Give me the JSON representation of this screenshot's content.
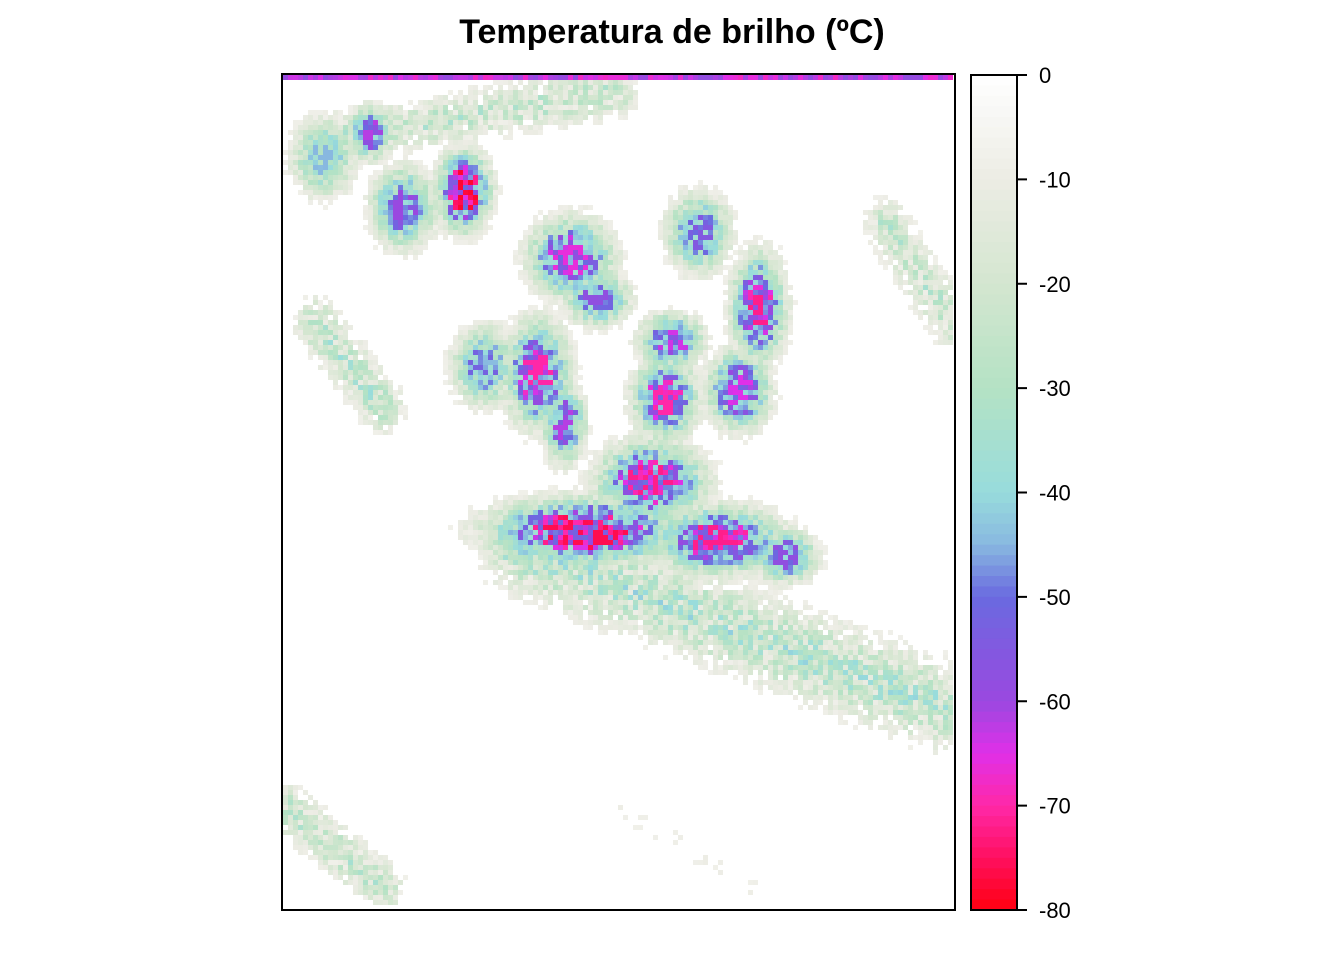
{
  "chart_data": {
    "type": "heatmap",
    "title": "Temperatura de brilho (ºC)",
    "xlabel": "",
    "ylabel": "",
    "colorbar": {
      "min": -80,
      "max": 0,
      "ticks": [
        0,
        -10,
        -20,
        -30,
        -40,
        -50,
        -60,
        -70,
        -80
      ],
      "tick_labels": [
        "0",
        "-10",
        "-20",
        "-30",
        "-40",
        "-50",
        "-60",
        "-70",
        "-80"
      ],
      "palette": [
        {
          "value": 0,
          "color": "#ffffff"
        },
        {
          "value": -10,
          "color": "#ecece4"
        },
        {
          "value": -20,
          "color": "#d4e6d0"
        },
        {
          "value": -30,
          "color": "#b4e2c4"
        },
        {
          "value": -40,
          "color": "#98dcdc"
        },
        {
          "value": -45,
          "color": "#88b8e0"
        },
        {
          "value": -50,
          "color": "#6a6ae0"
        },
        {
          "value": -60,
          "color": "#9a48e0"
        },
        {
          "value": -65,
          "color": "#e030e8"
        },
        {
          "value": -70,
          "color": "#ff28a8"
        },
        {
          "value": -75,
          "color": "#ff1060"
        },
        {
          "value": -80,
          "color": "#ff0010"
        }
      ]
    },
    "clusters": [
      {
        "x": 0.27,
        "y": 0.14,
        "sx": 0.025,
        "sy": 0.03,
        "value": -78
      },
      {
        "x": 0.18,
        "y": 0.16,
        "sx": 0.03,
        "sy": 0.03,
        "value": -60
      },
      {
        "x": 0.06,
        "y": 0.1,
        "sx": 0.03,
        "sy": 0.03,
        "value": -45
      },
      {
        "x": 0.13,
        "y": 0.07,
        "sx": 0.02,
        "sy": 0.02,
        "value": -62
      },
      {
        "x": 0.43,
        "y": 0.22,
        "sx": 0.04,
        "sy": 0.03,
        "value": -66
      },
      {
        "x": 0.62,
        "y": 0.19,
        "sx": 0.03,
        "sy": 0.03,
        "value": -55
      },
      {
        "x": 0.71,
        "y": 0.28,
        "sx": 0.025,
        "sy": 0.04,
        "value": -72
      },
      {
        "x": 0.58,
        "y": 0.32,
        "sx": 0.03,
        "sy": 0.02,
        "value": -64
      },
      {
        "x": 0.38,
        "y": 0.36,
        "sx": 0.03,
        "sy": 0.04,
        "value": -70
      },
      {
        "x": 0.42,
        "y": 0.42,
        "sx": 0.02,
        "sy": 0.03,
        "value": -62
      },
      {
        "x": 0.57,
        "y": 0.39,
        "sx": 0.03,
        "sy": 0.03,
        "value": -70
      },
      {
        "x": 0.68,
        "y": 0.38,
        "sx": 0.03,
        "sy": 0.03,
        "value": -65
      },
      {
        "x": 0.55,
        "y": 0.49,
        "sx": 0.05,
        "sy": 0.03,
        "value": -72
      },
      {
        "x": 0.45,
        "y": 0.55,
        "sx": 0.09,
        "sy": 0.025,
        "value": -76
      },
      {
        "x": 0.65,
        "y": 0.56,
        "sx": 0.06,
        "sy": 0.025,
        "value": -72
      },
      {
        "x": 0.75,
        "y": 0.58,
        "sx": 0.03,
        "sy": 0.02,
        "value": -58
      },
      {
        "x": 0.47,
        "y": 0.27,
        "sx": 0.03,
        "sy": 0.02,
        "value": -58
      },
      {
        "x": 0.3,
        "y": 0.35,
        "sx": 0.03,
        "sy": 0.03,
        "value": -52
      }
    ],
    "bands": [
      {
        "x0": 0.35,
        "y0": 0.57,
        "x1": 0.98,
        "y1": 0.76,
        "width": 0.05,
        "value": -36
      },
      {
        "x0": 0.05,
        "y0": 0.08,
        "x1": 0.5,
        "y1": 0.02,
        "width": 0.03,
        "value": -30
      },
      {
        "x0": 0.0,
        "y0": 0.88,
        "x1": 0.15,
        "y1": 0.98,
        "width": 0.03,
        "value": -30
      },
      {
        "x0": 0.05,
        "y0": 0.3,
        "x1": 0.15,
        "y1": 0.4,
        "width": 0.03,
        "value": -34
      },
      {
        "x0": 0.9,
        "y0": 0.18,
        "x1": 1.0,
        "y1": 0.3,
        "width": 0.03,
        "value": -30
      },
      {
        "x0": 0.5,
        "y0": 0.88,
        "x1": 0.7,
        "y1": 0.98,
        "width": 0.03,
        "value": -8
      }
    ]
  }
}
